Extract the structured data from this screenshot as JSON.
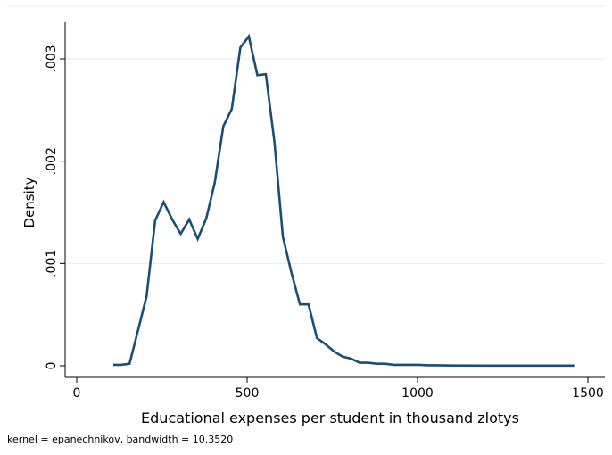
{
  "chart_data": {
    "type": "line",
    "title": "",
    "xlabel": "Educational expenses per student in thousand zlotys",
    "ylabel": "Density",
    "note": "kernel = epanechnikov, bandwidth = 10.3520",
    "xlim": [
      0,
      1500
    ],
    "ylim": [
      0,
      0.0033
    ],
    "x_ticks": [
      {
        "value": 0,
        "label": "0"
      },
      {
        "value": 500,
        "label": "500"
      },
      {
        "value": 1000,
        "label": "1000"
      },
      {
        "value": 1500,
        "label": "1500"
      }
    ],
    "y_ticks": [
      {
        "value": 0,
        "label": "0"
      },
      {
        "value": 0.001,
        "label": ".001"
      },
      {
        "value": 0.002,
        "label": ".002"
      },
      {
        "value": 0.003,
        "label": ".003"
      }
    ],
    "grid": "horizontal",
    "line_color": "#1b4f72",
    "series": [
      {
        "x": [
          107,
          130,
          155,
          180,
          205,
          230,
          255,
          280,
          305,
          330,
          355,
          380,
          405,
          430,
          455,
          480,
          505,
          530,
          555,
          580,
          605,
          630,
          655,
          680,
          705,
          730,
          755,
          780,
          805,
          830,
          855,
          880,
          905,
          930,
          955,
          980,
          1005,
          1030,
          1055,
          1100,
          1200,
          1300,
          1400,
          1460
        ],
        "y": [
          1e-05,
          1e-05,
          2e-05,
          0.00035,
          0.00068,
          0.00142,
          0.0016,
          0.00143,
          0.00129,
          0.00143,
          0.00124,
          0.00144,
          0.00179,
          0.00234,
          0.00251,
          0.00311,
          0.00322,
          0.00284,
          0.00285,
          0.00219,
          0.00126,
          0.00091,
          0.0006,
          0.0006,
          0.00027,
          0.00021,
          0.00014,
          9e-05,
          7e-05,
          3e-05,
          3e-05,
          2e-05,
          2e-05,
          1e-05,
          1e-05,
          1e-05,
          1e-05,
          5e-06,
          5e-06,
          3e-06,
          2e-06,
          2e-06,
          2e-06,
          2e-06
        ]
      }
    ]
  }
}
